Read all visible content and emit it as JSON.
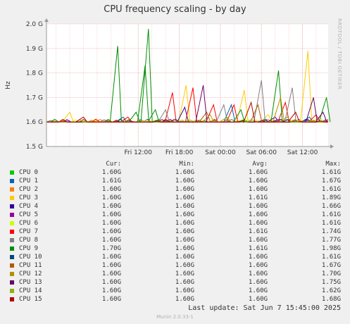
{
  "title": "CPU frequency scaling - by day",
  "side_label": "RRDTOOL / TOBI OETIKER",
  "footer": "Munin 2.0.33-1",
  "last_update": "Last update:  Sat Jun  7 15:45:00 2025",
  "legend": {
    "headers": [
      "Cur:",
      "Min:",
      "Avg:",
      "Max:"
    ],
    "rows": [
      {
        "name": "CPU 0",
        "color": "#00cc00",
        "cur": "1.60G",
        "min": "1.60G",
        "avg": "1.60G",
        "max": "1.61G"
      },
      {
        "name": "CPU 1",
        "color": "#0066b3",
        "cur": "1.61G",
        "min": "1.60G",
        "avg": "1.60G",
        "max": "1.67G"
      },
      {
        "name": "CPU 2",
        "color": "#ff8000",
        "cur": "1.60G",
        "min": "1.60G",
        "avg": "1.60G",
        "max": "1.61G"
      },
      {
        "name": "CPU 3",
        "color": "#ffcc00",
        "cur": "1.60G",
        "min": "1.60G",
        "avg": "1.61G",
        "max": "1.89G"
      },
      {
        "name": "CPU 4",
        "color": "#330099",
        "cur": "1.60G",
        "min": "1.60G",
        "avg": "1.60G",
        "max": "1.66G"
      },
      {
        "name": "CPU 5",
        "color": "#990099",
        "cur": "1.60G",
        "min": "1.60G",
        "avg": "1.60G",
        "max": "1.61G"
      },
      {
        "name": "CPU 6",
        "color": "#ccff00",
        "cur": "1.60G",
        "min": "1.60G",
        "avg": "1.60G",
        "max": "1.61G"
      },
      {
        "name": "CPU 7",
        "color": "#ff0000",
        "cur": "1.60G",
        "min": "1.60G",
        "avg": "1.61G",
        "max": "1.74G"
      },
      {
        "name": "CPU 8",
        "color": "#808080",
        "cur": "1.60G",
        "min": "1.60G",
        "avg": "1.60G",
        "max": "1.77G"
      },
      {
        "name": "CPU 9",
        "color": "#008f00",
        "cur": "1.70G",
        "min": "1.60G",
        "avg": "1.61G",
        "max": "1.98G"
      },
      {
        "name": "CPU 10",
        "color": "#00487d",
        "cur": "1.60G",
        "min": "1.60G",
        "avg": "1.60G",
        "max": "1.61G"
      },
      {
        "name": "CPU 11",
        "color": "#b35a00",
        "cur": "1.60G",
        "min": "1.60G",
        "avg": "1.60G",
        "max": "1.67G"
      },
      {
        "name": "CPU 12",
        "color": "#b38f00",
        "cur": "1.60G",
        "min": "1.60G",
        "avg": "1.60G",
        "max": "1.70G"
      },
      {
        "name": "CPU 13",
        "color": "#6b006b",
        "cur": "1.60G",
        "min": "1.60G",
        "avg": "1.60G",
        "max": "1.75G"
      },
      {
        "name": "CPU 14",
        "color": "#8fb300",
        "cur": "1.60G",
        "min": "1.60G",
        "avg": "1.60G",
        "max": "1.62G"
      },
      {
        "name": "CPU 15",
        "color": "#b30000",
        "cur": "1.60G",
        "min": "1.60G",
        "avg": "1.60G",
        "max": "1.68G"
      }
    ]
  },
  "chart_data": {
    "type": "line",
    "title": "CPU frequency scaling - by day",
    "ylabel": "Hz",
    "ylim": [
      1.5,
      2.0
    ],
    "y_ticks": [
      "1.5 G",
      "1.6 G",
      "1.7 G",
      "1.8 G",
      "1.9 G",
      "2.0 G"
    ],
    "y_tick_values": [
      1.5,
      1.6,
      1.7,
      1.8,
      1.9,
      2.0
    ],
    "xlim_hours": [
      -25.4,
      15.75
    ],
    "x_ticks": [
      "Fri 12:00",
      "Fri 18:00",
      "Sat 00:00",
      "Sat 06:00",
      "Sat 12:00"
    ],
    "x_tick_hours": [
      -12,
      -6,
      0,
      6,
      12
    ],
    "baseline": 1.6,
    "grid": true,
    "series_spikes": [
      {
        "name": "CPU 0",
        "spikes": [
          [
            -9.0,
            1.61
          ],
          [
            3.5,
            1.61
          ],
          [
            10.0,
            1.61
          ]
        ]
      },
      {
        "name": "CPU 1",
        "spikes": [
          [
            -14.2,
            1.62
          ],
          [
            1.6,
            1.67
          ],
          [
            13.0,
            1.62
          ]
        ]
      },
      {
        "name": "CPU 2",
        "spikes": [
          [
            -17.5,
            1.61
          ],
          [
            7.0,
            1.61
          ]
        ]
      },
      {
        "name": "CPU 3",
        "spikes": [
          [
            -22.0,
            1.64
          ],
          [
            -5.0,
            1.75
          ],
          [
            3.5,
            1.73
          ],
          [
            7.0,
            1.63
          ],
          [
            12.8,
            1.89
          ],
          [
            14.5,
            1.62
          ]
        ]
      },
      {
        "name": "CPU 4",
        "spikes": [
          [
            -5.2,
            1.66
          ],
          [
            8.0,
            1.62
          ]
        ]
      },
      {
        "name": "CPU 5",
        "spikes": [
          [
            -8.5,
            1.61
          ],
          [
            11.5,
            1.61
          ]
        ]
      },
      {
        "name": "CPU 6",
        "spikes": [
          [
            -3.0,
            1.61
          ],
          [
            4.0,
            1.61
          ]
        ]
      },
      {
        "name": "CPU 7",
        "spikes": [
          [
            -13.5,
            1.62
          ],
          [
            -7.0,
            1.72
          ],
          [
            -4.0,
            1.74
          ],
          [
            -1.0,
            1.67
          ],
          [
            2.0,
            1.67
          ],
          [
            9.5,
            1.68
          ],
          [
            14.0,
            1.63
          ]
        ]
      },
      {
        "name": "CPU 8",
        "spikes": [
          [
            -8.0,
            1.65
          ],
          [
            0.5,
            1.67
          ],
          [
            6.0,
            1.77
          ],
          [
            10.5,
            1.74
          ]
        ]
      },
      {
        "name": "CPU 9",
        "spikes": [
          [
            -15.0,
            1.91
          ],
          [
            -12.3,
            1.64
          ],
          [
            -11.0,
            1.83
          ],
          [
            -10.5,
            1.98
          ],
          [
            -9.5,
            1.65
          ],
          [
            3.0,
            1.65
          ],
          [
            8.5,
            1.81
          ],
          [
            15.5,
            1.7
          ]
        ]
      },
      {
        "name": "CPU 10",
        "spikes": [
          [
            -6.5,
            1.61
          ],
          [
            6.5,
            1.61
          ]
        ]
      },
      {
        "name": "CPU 11",
        "spikes": [
          [
            5.5,
            1.67
          ],
          [
            -2.0,
            1.64
          ]
        ]
      },
      {
        "name": "CPU 12",
        "spikes": [
          [
            -1.5,
            1.63
          ],
          [
            8.8,
            1.7
          ]
        ]
      },
      {
        "name": "CPU 13",
        "spikes": [
          [
            -2.5,
            1.75
          ],
          [
            13.6,
            1.7
          ],
          [
            15.0,
            1.64
          ]
        ]
      },
      {
        "name": "CPU 14",
        "spikes": [
          [
            1.0,
            1.62
          ],
          [
            9.8,
            1.62
          ]
        ]
      },
      {
        "name": "CPU 15",
        "spikes": [
          [
            -20.0,
            1.62
          ],
          [
            4.5,
            1.68
          ],
          [
            11.0,
            1.64
          ]
        ]
      }
    ]
  }
}
